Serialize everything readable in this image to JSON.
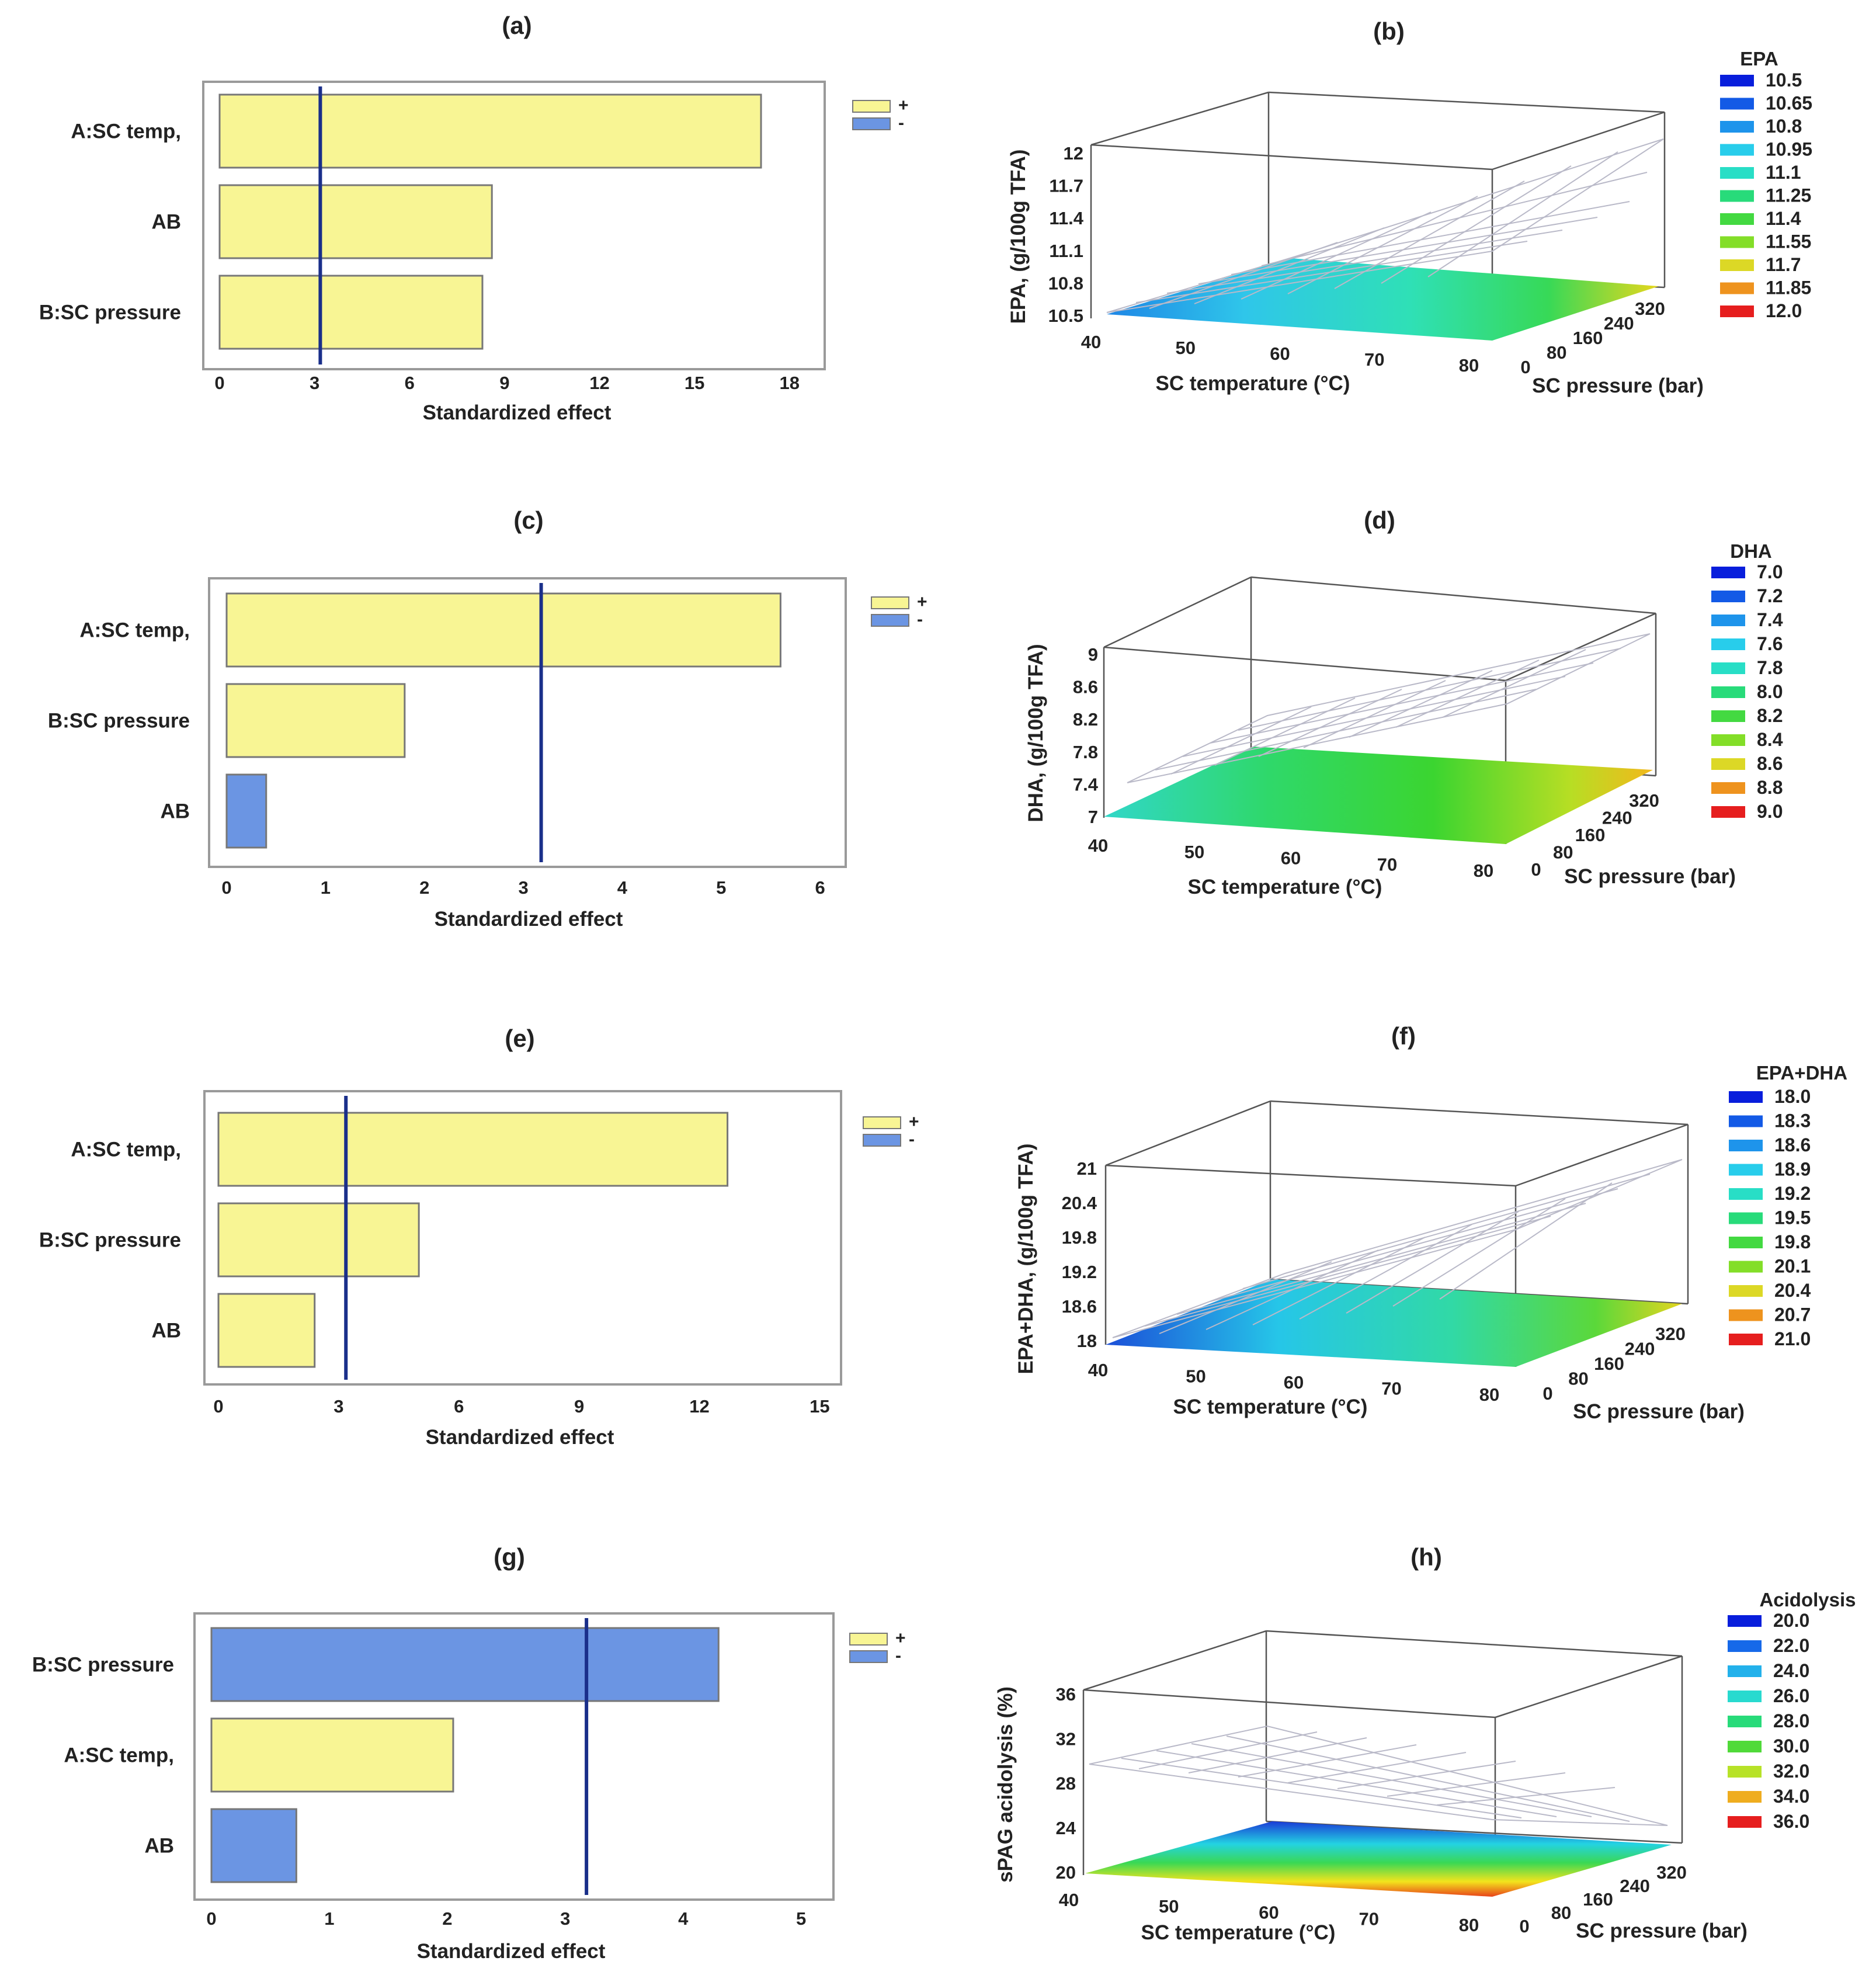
{
  "chart_data": [
    {
      "id": "a",
      "type": "bar",
      "orientation": "horizontal",
      "panel_label": "(a)",
      "categories": [
        "A:SC temp,",
        "AB",
        "B:SC pressure"
      ],
      "values": [
        17.1,
        8.6,
        8.3
      ],
      "signs": [
        "+",
        "+",
        "+"
      ],
      "xlim": [
        0,
        19
      ],
      "xticks": [
        0,
        3,
        6,
        9,
        12,
        15,
        18
      ],
      "reference_line": 3.18,
      "xlabel": "Standardized effect",
      "legend": [
        "+",
        "-"
      ]
    },
    {
      "id": "b",
      "type": "surface",
      "panel_label": "(b)",
      "zlabel": "EPA, (g/100g TFA)",
      "xlabel": "SC temperature (°C)",
      "ylabel": "SC pressure (bar)",
      "zticks": [
        "12",
        "11.7",
        "11.4",
        "11.1",
        "10.8",
        "10.5"
      ],
      "xticks": [
        "40",
        "50",
        "60",
        "70",
        "80"
      ],
      "yticks": [
        "0",
        "80",
        "160",
        "240",
        "320"
      ],
      "colorbar_title": "EPA",
      "colorbar_values": [
        "10.5",
        "10.65",
        "10.8",
        "10.95",
        "11.1",
        "11.25",
        "11.4",
        "11.55",
        "11.7",
        "11.85",
        "12.0"
      ]
    },
    {
      "id": "c",
      "type": "bar",
      "orientation": "horizontal",
      "panel_label": "(c)",
      "categories": [
        "A:SC temp,",
        "B:SC pressure",
        "AB"
      ],
      "values": [
        5.6,
        1.8,
        0.4
      ],
      "signs": [
        "+",
        "+",
        "-"
      ],
      "xlim": [
        0,
        6.2
      ],
      "xticks": [
        0,
        1,
        2,
        3,
        4,
        5,
        6
      ],
      "reference_line": 3.18,
      "xlabel": "Standardized effect",
      "legend": [
        "+",
        "-"
      ]
    },
    {
      "id": "d",
      "type": "surface",
      "panel_label": "(d)",
      "zlabel": "DHA, (g/100g TFA)",
      "xlabel": "SC temperature (°C)",
      "ylabel": "SC pressure (bar)",
      "zticks": [
        "9",
        "8.6",
        "8.2",
        "7.8",
        "7.4",
        "7"
      ],
      "xticks": [
        "40",
        "50",
        "60",
        "70",
        "80"
      ],
      "yticks": [
        "0",
        "80",
        "160",
        "240",
        "320"
      ],
      "colorbar_title": "DHA",
      "colorbar_values": [
        "7.0",
        "7.2",
        "7.4",
        "7.6",
        "7.8",
        "8.0",
        "8.2",
        "8.4",
        "8.6",
        "8.8",
        "9.0"
      ]
    },
    {
      "id": "e",
      "type": "bar",
      "orientation": "horizontal",
      "panel_label": "(e)",
      "categories": [
        "A:SC temp,",
        "B:SC pressure",
        "AB"
      ],
      "values": [
        12.7,
        5.0,
        2.4
      ],
      "signs": [
        "+",
        "+",
        "+"
      ],
      "xlim": [
        0,
        15.3
      ],
      "xticks": [
        0,
        3,
        6,
        9,
        12,
        15
      ],
      "reference_line": 3.18,
      "xlabel": "Standardized effect",
      "legend": [
        "+",
        "-"
      ]
    },
    {
      "id": "f",
      "type": "surface",
      "panel_label": "(f)",
      "zlabel": "EPA+DHA, (g/100g TFA)",
      "xlabel": "SC temperature (°C)",
      "ylabel": "SC pressure (bar)",
      "zticks": [
        "21",
        "20.4",
        "19.8",
        "19.2",
        "18.6",
        "18"
      ],
      "xticks": [
        "40",
        "50",
        "60",
        "70",
        "80"
      ],
      "yticks": [
        "0",
        "80",
        "160",
        "240",
        "320"
      ],
      "colorbar_title": "EPA+DHA",
      "colorbar_values": [
        "18.0",
        "18.3",
        "18.6",
        "18.9",
        "19.2",
        "19.5",
        "19.8",
        "20.1",
        "20.4",
        "20.7",
        "21.0"
      ]
    },
    {
      "id": "g",
      "type": "bar",
      "orientation": "horizontal",
      "panel_label": "(g)",
      "categories": [
        "B:SC pressure",
        "A:SC temp,",
        "AB"
      ],
      "values": [
        4.3,
        2.05,
        0.72
      ],
      "signs": [
        "-",
        "+",
        "-"
      ],
      "xlim": [
        0,
        5.2
      ],
      "xticks": [
        0,
        1,
        2,
        3,
        4,
        5
      ],
      "reference_line": 3.18,
      "xlabel": "Standardized effect",
      "legend": [
        "+",
        "-"
      ]
    },
    {
      "id": "h",
      "type": "surface",
      "panel_label": "(h)",
      "zlabel": "sPAG acidolysis (%)",
      "xlabel": "SC temperature (°C)",
      "ylabel": "SC pressure (bar)",
      "zticks": [
        "36",
        "32",
        "28",
        "24",
        "20"
      ],
      "xticks": [
        "40",
        "50",
        "60",
        "70",
        "80"
      ],
      "yticks": [
        "0",
        "80",
        "160",
        "240",
        "320"
      ],
      "colorbar_title": "Acidolysis",
      "colorbar_values": [
        "20.0",
        "22.0",
        "24.0",
        "26.0",
        "28.0",
        "30.0",
        "32.0",
        "34.0",
        "36.0"
      ]
    }
  ],
  "colors": {
    "positive": "#f8f594",
    "negative": "#6b95e3",
    "reference_line": "#1a2f8a",
    "frame": "#9a9a9a"
  }
}
